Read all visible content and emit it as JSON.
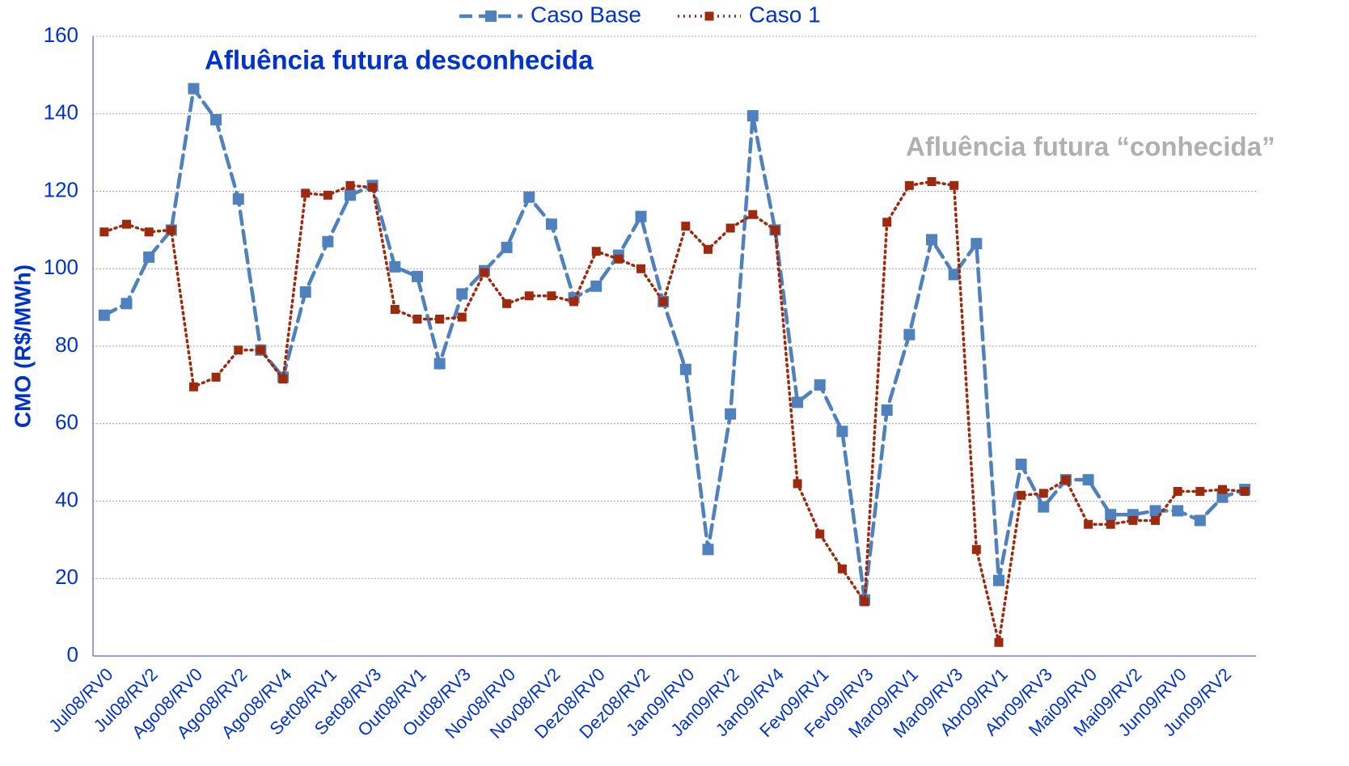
{
  "chart_data": {
    "type": "line",
    "y_label": "CMO (R$/MWh)",
    "annotations": [
      "Afluência futura desconhecida",
      "Afluência futura “conhecida”"
    ],
    "categories": [
      "Jul08/RV0",
      null,
      "Jul08/RV2",
      null,
      "Ago08/RV0",
      null,
      "Ago08/RV2",
      null,
      "Ago08/RV4",
      null,
      "Set08/RV1",
      null,
      "Set08/RV3",
      null,
      "Out08/RV1",
      null,
      "Out08/RV3",
      null,
      "Nov08/RV0",
      null,
      "Nov08/RV2",
      null,
      "Dez08/RV0",
      null,
      "Dez08/RV2",
      null,
      "Jan09/RV0",
      null,
      "Jan09/RV2",
      null,
      "Jan09/RV4",
      null,
      "Fev09/RV1",
      null,
      "Fev09/RV3",
      null,
      "Mar09/RV1",
      null,
      "Mar09/RV3",
      null,
      "Abr09/RV1",
      null,
      "Abr09/RV3",
      null,
      "Mai09/RV0",
      null,
      "Mai09/RV2",
      null,
      "Jun09/RV0",
      null,
      "Jun09/RV2",
      null
    ],
    "series": [
      {
        "name": "Caso Base",
        "color": "#4f81bd",
        "dash": "dashed",
        "values": [
          88,
          91,
          103,
          110,
          146.5,
          138.5,
          118,
          79,
          72,
          94,
          107,
          119,
          121.5,
          100.5,
          98,
          75.5,
          93.5,
          99.5,
          105.5,
          118.5,
          111.5,
          92.5,
          95.5,
          103.5,
          113.5,
          91.5,
          74,
          27.5,
          62.5,
          139.5,
          110,
          65.5,
          70,
          58,
          14.5,
          63.5,
          83,
          107.5,
          98.5,
          106.5,
          19.5,
          49.5,
          38.5,
          45.5,
          45.5,
          36.5,
          36.5,
          37.5,
          37.5,
          35,
          41,
          43
        ]
      },
      {
        "name": "Caso 1",
        "color": "#9e2a0e",
        "dash": "dotted",
        "values": [
          109.5,
          111.5,
          109.5,
          110,
          69.5,
          72,
          79,
          79,
          71.5,
          119.5,
          119,
          121.5,
          121,
          89.5,
          87,
          87,
          87.5,
          99,
          91,
          93,
          93,
          91.5,
          104.5,
          102.5,
          100,
          91.5,
          111,
          105,
          110.5,
          114,
          110,
          44.5,
          31.5,
          22.5,
          14,
          112,
          121.5,
          122.5,
          121.5,
          27.5,
          3.5,
          41.5,
          42,
          45.5,
          34,
          34,
          35,
          35,
          42.5,
          42.5,
          43,
          42.5
        ]
      }
    ],
    "ylim": [
      0,
      160
    ],
    "yticks": [
      0,
      20,
      40,
      60,
      80,
      100,
      120,
      140,
      160
    ],
    "grid": true,
    "legend": "top"
  }
}
